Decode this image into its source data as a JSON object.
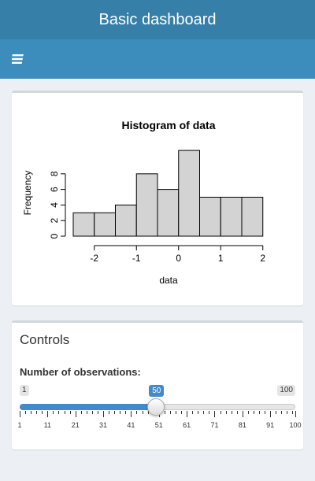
{
  "header": {
    "title": "Basic dashboard"
  },
  "navbar": {
    "toggle_icon": "hamburger-icon"
  },
  "plot": {
    "chart_data": {
      "type": "bar",
      "title": "Histogram of data",
      "xlabel": "data",
      "ylabel": "Frequency",
      "bin_edges": [
        -2.5,
        -2.0,
        -1.5,
        -1.0,
        -0.5,
        0.0,
        0.5,
        1.0,
        1.5,
        2.0
      ],
      "values": [
        3,
        3,
        4,
        8,
        6,
        11,
        5,
        5,
        5
      ],
      "xticks": [
        -2,
        -1,
        0,
        1,
        2
      ],
      "yticks": [
        0,
        2,
        4,
        6,
        8
      ],
      "xlim": [
        -2.5,
        2.0
      ],
      "ylim": [
        0,
        11
      ],
      "bar_color": "#d3d3d3",
      "grid": false
    }
  },
  "controls": {
    "title": "Controls",
    "slider": {
      "label": "Number of observations:",
      "min": 1,
      "max": 100,
      "value": 50,
      "min_label": "1",
      "max_label": "100",
      "value_label": "50",
      "ticks": [
        1,
        11,
        21,
        31,
        41,
        51,
        61,
        71,
        81,
        91,
        100
      ],
      "fill_color": "#428bca"
    }
  }
}
